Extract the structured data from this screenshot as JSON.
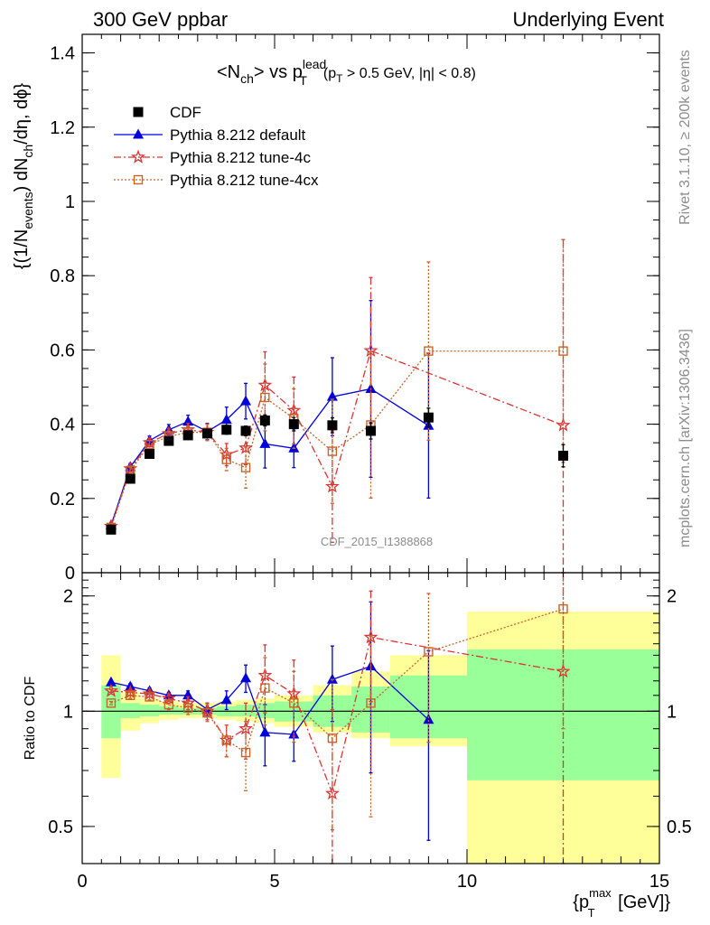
{
  "header": {
    "left": "300 GeV ppbar",
    "right": "Underlying Event"
  },
  "side_labels": {
    "rivet": "Rivet 3.1.10, ≥ 200k events",
    "mcplots": "mcplots.cern.ch [arXiv:1306.3436]"
  },
  "colors": {
    "cdf": "#000000",
    "default": "#0000dd",
    "tune4c": "#dd3333",
    "tune4cx": "#c86428",
    "band_yellow": "#ffff99",
    "band_green": "#99ff99"
  },
  "chart_data": [
    {
      "type": "scatter",
      "panel": "main",
      "title": {
        "text_a": "<N",
        "sub_a": "ch",
        "text_b": "> vs p",
        "sup_b": "lead",
        "sub_b": "T",
        "cond_a": "(p",
        "cond_sub": "T",
        "cond_b": " > 0.5 GeV, |η| < 0.8)"
      },
      "ylabel": "{(1/N_events) dN_ch/dη, dϕ}",
      "ylabel_parts": {
        "a": "{(1/N",
        "a_sub": "events",
        "b": ") dN",
        "b_sub": "ch",
        "c": "/dη, dϕ}"
      },
      "xlim": [
        0,
        15
      ],
      "ylim": [
        0,
        1.45
      ],
      "yticks": [
        {
          "value": 0,
          "label": "0"
        },
        {
          "value": 0.2,
          "label": "0.2"
        },
        {
          "value": 0.4,
          "label": "0.4"
        },
        {
          "value": 0.6,
          "label": "0.6"
        },
        {
          "value": 0.8,
          "label": "0.8"
        },
        {
          "value": 1.0,
          "label": "1"
        },
        {
          "value": 1.2,
          "label": "1.2"
        },
        {
          "value": 1.4,
          "label": "1.4"
        }
      ],
      "watermark": "CDF_2015_I1388868",
      "legend": [
        {
          "key": "cdf",
          "label": "CDF"
        },
        {
          "key": "default",
          "label": "Pythia 8.212 default"
        },
        {
          "key": "tune4c",
          "label": "Pythia 8.212 tune-4c"
        },
        {
          "key": "tune4cx",
          "label": "Pythia 8.212 tune-4cx"
        }
      ],
      "series": [
        {
          "key": "cdf",
          "name": "CDF",
          "marker": "square",
          "style": "none",
          "x": [
            0.75,
            1.25,
            1.75,
            2.25,
            2.75,
            3.25,
            3.75,
            4.25,
            4.75,
            5.5,
            6.5,
            7.5,
            9.0,
            12.5
          ],
          "y": [
            0.116,
            0.253,
            0.32,
            0.355,
            0.37,
            0.375,
            0.385,
            0.382,
            0.41,
            0.4,
            0.397,
            0.382,
            0.418,
            0.315
          ],
          "err": [
            0.005,
            0.008,
            0.009,
            0.01,
            0.01,
            0.011,
            0.012,
            0.013,
            0.015,
            0.018,
            0.02,
            0.022,
            0.025,
            0.03
          ]
        },
        {
          "key": "default",
          "name": "Pythia 8.212 default",
          "marker": "triangle",
          "style": "solid",
          "x": [
            0.75,
            1.25,
            1.75,
            2.25,
            2.75,
            3.25,
            3.75,
            4.25,
            4.75,
            5.5,
            6.5,
            7.5,
            9.0
          ],
          "y": [
            0.128,
            0.285,
            0.356,
            0.385,
            0.407,
            0.38,
            0.412,
            0.462,
            0.347,
            0.335,
            0.474,
            0.495,
            0.396
          ],
          "err": [
            0.004,
            0.009,
            0.012,
            0.014,
            0.017,
            0.022,
            0.034,
            0.048,
            0.065,
            0.052,
            0.105,
            0.238,
            0.195
          ]
        },
        {
          "key": "tune4c",
          "name": "Pythia 8.212 tune-4c",
          "marker": "star",
          "style": "dashdot",
          "x": [
            0.75,
            1.25,
            1.75,
            2.25,
            2.75,
            3.25,
            3.75,
            4.25,
            4.75,
            5.5,
            6.5,
            7.5,
            12.5
          ],
          "y": [
            0.125,
            0.28,
            0.35,
            0.375,
            0.385,
            0.378,
            0.318,
            0.336,
            0.505,
            0.437,
            0.232,
            0.598,
            0.397
          ],
          "err": [
            0.004,
            0.008,
            0.011,
            0.014,
            0.017,
            0.022,
            0.03,
            0.045,
            0.09,
            0.09,
            0.15,
            0.197,
            0.5
          ]
        },
        {
          "key": "tune4cx",
          "name": "Pythia 8.212 tune-4cx",
          "marker": "open-square",
          "style": "dotted",
          "x": [
            0.75,
            1.25,
            1.75,
            2.25,
            2.75,
            3.25,
            3.75,
            4.25,
            4.75,
            5.5,
            6.5,
            7.5,
            9.0,
            12.5
          ],
          "y": [
            0.122,
            0.275,
            0.345,
            0.367,
            0.378,
            0.378,
            0.305,
            0.283,
            0.472,
            0.415,
            0.327,
            0.398,
            0.597,
            0.597
          ],
          "err": [
            0.004,
            0.008,
            0.011,
            0.014,
            0.017,
            0.022,
            0.03,
            0.055,
            0.09,
            0.08,
            0.14,
            0.197,
            0.24,
            0.3
          ]
        }
      ]
    },
    {
      "type": "scatter",
      "panel": "ratio",
      "ylabel": "Ratio to CDF",
      "xlabel": "{p_T^max [GeV]}",
      "xlabel_parts": {
        "a": "{p",
        "sup": "max",
        "sub": "T",
        "b": " [GeV]}"
      },
      "xlim": [
        0,
        15
      ],
      "ylim": [
        0.4,
        2.3
      ],
      "yscale": "log",
      "xticks": [
        {
          "value": 0,
          "label": "0"
        },
        {
          "value": 5,
          "label": "5"
        },
        {
          "value": 10,
          "label": "10"
        },
        {
          "value": 15,
          "label": "15"
        }
      ],
      "yticks": [
        {
          "value": 0.5,
          "label": "0.5"
        },
        {
          "value": 1,
          "label": "1"
        },
        {
          "value": 2,
          "label": "2"
        }
      ],
      "bands": {
        "edges": [
          0.5,
          1.0,
          1.5,
          2.0,
          2.5,
          3.0,
          3.5,
          4.0,
          4.5,
          5.0,
          6.0,
          7.0,
          8.0,
          10.0,
          15.0
        ],
        "yellow_lo": [
          0.67,
          0.89,
          0.93,
          0.95,
          0.96,
          0.96,
          0.95,
          0.94,
          0.93,
          0.91,
          0.88,
          0.85,
          0.81,
          0.35
        ],
        "yellow_hi": [
          1.4,
          1.12,
          1.08,
          1.06,
          1.05,
          1.05,
          1.06,
          1.07,
          1.08,
          1.1,
          1.17,
          1.27,
          1.4,
          1.82
        ],
        "green_lo": [
          0.85,
          0.96,
          0.97,
          0.98,
          0.98,
          0.98,
          0.97,
          0.97,
          0.96,
          0.94,
          0.91,
          0.88,
          0.85,
          0.66
        ],
        "green_hi": [
          1.17,
          1.05,
          1.04,
          1.03,
          1.02,
          1.02,
          1.03,
          1.04,
          1.05,
          1.06,
          1.1,
          1.16,
          1.24,
          1.45
        ]
      },
      "series": [
        {
          "key": "default",
          "name": "Pythia 8.212 default",
          "marker": "triangle",
          "style": "solid",
          "x": [
            0.75,
            1.25,
            1.75,
            2.25,
            2.75,
            3.25,
            3.75,
            4.25,
            4.75,
            5.5,
            6.5,
            7.5,
            9.0
          ],
          "y": [
            1.19,
            1.16,
            1.13,
            1.1,
            1.1,
            1.01,
            1.07,
            1.22,
            0.88,
            0.87,
            1.21,
            1.31,
            0.95
          ],
          "err": [
            0.01,
            0.02,
            0.02,
            0.02,
            0.03,
            0.04,
            0.06,
            0.1,
            0.16,
            0.13,
            0.27,
            0.62,
            0.49
          ]
        },
        {
          "key": "tune4c",
          "name": "Pythia 8.212 tune-4c",
          "marker": "star",
          "style": "dashdot",
          "x": [
            0.75,
            1.25,
            1.75,
            2.25,
            2.75,
            3.25,
            3.75,
            4.25,
            4.75,
            5.5,
            6.5,
            7.5,
            12.5
          ],
          "y": [
            1.13,
            1.12,
            1.11,
            1.08,
            1.05,
            1.0,
            0.84,
            0.9,
            1.24,
            1.11,
            0.61,
            1.56,
            1.27
          ],
          "err": [
            0.01,
            0.02,
            0.02,
            0.03,
            0.04,
            0.05,
            0.08,
            0.15,
            0.25,
            0.25,
            0.4,
            0.5,
            1.6
          ]
        },
        {
          "key": "tune4cx",
          "name": "Pythia 8.212 tune-4cx",
          "marker": "open-square",
          "style": "dotted",
          "x": [
            0.75,
            1.25,
            1.75,
            2.25,
            2.75,
            3.25,
            3.75,
            4.25,
            4.75,
            5.5,
            6.5,
            7.5,
            9.0,
            12.5
          ],
          "y": [
            1.05,
            1.1,
            1.09,
            1.04,
            1.02,
            0.99,
            0.84,
            0.78,
            1.15,
            1.05,
            0.85,
            1.05,
            1.43,
            1.85
          ],
          "err": [
            0.01,
            0.02,
            0.02,
            0.03,
            0.04,
            0.05,
            0.08,
            0.16,
            0.23,
            0.22,
            0.36,
            0.52,
            0.6,
            0.95
          ]
        }
      ]
    }
  ]
}
